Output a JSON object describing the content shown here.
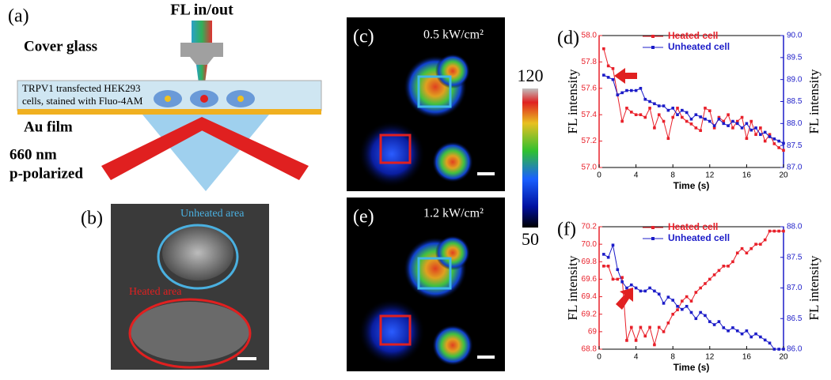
{
  "panels": [
    "(a)",
    "(b)"
  ],
  "schematic": {
    "title": "FL in/out",
    "cover_glass": "Cover glass",
    "cells": [
      "TRPV1 transfected HEK293",
      "cells, stained with Fluo-4AM"
    ],
    "film": "Au film",
    "laser": [
      "660 nm",
      "p-polarized"
    ]
  },
  "micrograph": {
    "unheated": "Unheated area",
    "heated": "Heated area"
  },
  "heatmaps": [
    {
      "label": "(c)",
      "power": "0.5 kW/cm²"
    },
    {
      "label": "(e)",
      "power": "1.2 kW/cm²"
    }
  ],
  "colorbar": {
    "max": 120,
    "min": 50
  },
  "chart_data": [
    {
      "type": "line",
      "panel_label": "(d)",
      "xlabel": "Time (s)",
      "ylabel": "FL intensity",
      "y2label": "FL intensity",
      "x": [
        0.5,
        1,
        1.5,
        2,
        2.5,
        3,
        3.5,
        4,
        4.5,
        5,
        5.5,
        6,
        6.5,
        7,
        7.5,
        8,
        8.5,
        9,
        9.5,
        10,
        10.5,
        11,
        11.5,
        12,
        12.5,
        13,
        13.5,
        14,
        14.5,
        15,
        15.5,
        16,
        16.5,
        17,
        17.5,
        18,
        18.5,
        19,
        19.5,
        20
      ],
      "xlim": [
        0,
        20
      ],
      "xticks": [
        0,
        4,
        8,
        12,
        16,
        20
      ],
      "ylim": [
        57,
        58
      ],
      "yticks": [
        {
          "value": 57,
          "label": "57.0"
        },
        57.2,
        57.4,
        57.6,
        57.8,
        {
          "value": 58,
          "label": "58.0"
        }
      ],
      "y2lim": [
        87,
        90
      ],
      "y2ticks": [
        {
          "value": 87,
          "label": "87.0"
        },
        87.5,
        {
          "value": 88,
          "label": "88.0"
        },
        88.5,
        {
          "value": 89,
          "label": "89.0"
        },
        89.5,
        {
          "value": 90,
          "label": "90.0"
        }
      ],
      "series": [
        {
          "name": "Heated cell",
          "color": "#e8202a",
          "axis": "y",
          "values": [
            57.9,
            57.77,
            57.75,
            57.55,
            57.35,
            57.45,
            57.42,
            57.4,
            57.4,
            57.38,
            57.45,
            57.3,
            57.4,
            57.35,
            57.22,
            57.38,
            57.45,
            57.38,
            57.35,
            57.33,
            57.3,
            57.28,
            57.45,
            57.43,
            57.3,
            57.38,
            57.35,
            57.4,
            57.3,
            57.35,
            57.38,
            57.22,
            57.35,
            57.25,
            57.3,
            57.2,
            57.25,
            57.18,
            57.15,
            57.13
          ]
        },
        {
          "name": "Unheated cell",
          "color": "#1c1cc8",
          "axis": "y2",
          "values": [
            89.1,
            89.05,
            89.0,
            88.65,
            88.7,
            88.75,
            88.75,
            88.75,
            88.8,
            88.55,
            88.5,
            88.45,
            88.4,
            88.4,
            88.3,
            88.35,
            88.2,
            88.3,
            88.25,
            88.1,
            88.2,
            88.15,
            88.1,
            88.05,
            87.95,
            88.1,
            88.0,
            87.95,
            88.05,
            88.0,
            87.9,
            88.0,
            87.85,
            87.9,
            87.75,
            87.8,
            87.7,
            87.65,
            87.6,
            87.55
          ]
        }
      ]
    },
    {
      "type": "line",
      "panel_label": "(f)",
      "xlabel": "Time (s)",
      "ylabel": "FL intensity",
      "y2label": "FL intensity",
      "x": [
        0.5,
        1,
        1.5,
        2,
        2.5,
        3,
        3.5,
        4,
        4.5,
        5,
        5.5,
        6,
        6.5,
        7,
        7.5,
        8,
        8.5,
        9,
        9.5,
        10,
        10.5,
        11,
        11.5,
        12,
        12.5,
        13,
        13.5,
        14,
        14.5,
        15,
        15.5,
        16,
        16.5,
        17,
        17.5,
        18,
        18.5,
        19,
        19.5,
        20
      ],
      "xlim": [
        0,
        20
      ],
      "xticks": [
        0,
        4,
        8,
        12,
        16,
        20
      ],
      "ylim": [
        68.8,
        70.2
      ],
      "yticks": [
        68.8,
        69.0,
        69.2,
        69.4,
        69.6,
        69.8,
        {
          "value": 70,
          "label": "70.0"
        },
        70.2
      ],
      "y2lim": [
        86,
        88
      ],
      "y2ticks": [
        {
          "value": 86,
          "label": "86.0"
        },
        86.5,
        {
          "value": 87,
          "label": "87.0"
        },
        87.5,
        {
          "value": 88,
          "label": "88.0"
        }
      ],
      "series": [
        {
          "name": "Heated cell",
          "color": "#e8202a",
          "axis": "y",
          "values": [
            69.75,
            69.75,
            69.6,
            69.6,
            69.62,
            68.9,
            69.05,
            68.9,
            69.05,
            68.95,
            69.05,
            68.85,
            69.05,
            69.0,
            69.1,
            69.2,
            69.25,
            69.35,
            69.4,
            69.35,
            69.45,
            69.5,
            69.55,
            69.6,
            69.65,
            69.7,
            69.75,
            69.75,
            69.8,
            69.9,
            69.95,
            69.9,
            69.95,
            70.0,
            70.0,
            70.05,
            70.15,
            70.15,
            70.15,
            70.15
          ]
        },
        {
          "name": "Unheated cell",
          "color": "#1c1cc8",
          "axis": "y2",
          "values": [
            87.55,
            87.5,
            87.7,
            87.3,
            87.1,
            87.0,
            87.05,
            87.0,
            86.95,
            86.95,
            87.0,
            86.95,
            86.9,
            86.75,
            86.85,
            86.8,
            86.7,
            86.65,
            86.7,
            86.6,
            86.5,
            86.6,
            86.55,
            86.45,
            86.4,
            86.45,
            86.35,
            86.3,
            86.35,
            86.3,
            86.25,
            86.3,
            86.2,
            86.25,
            86.2,
            86.15,
            86.1,
            86.0,
            86.0,
            86.0
          ]
        }
      ]
    }
  ]
}
